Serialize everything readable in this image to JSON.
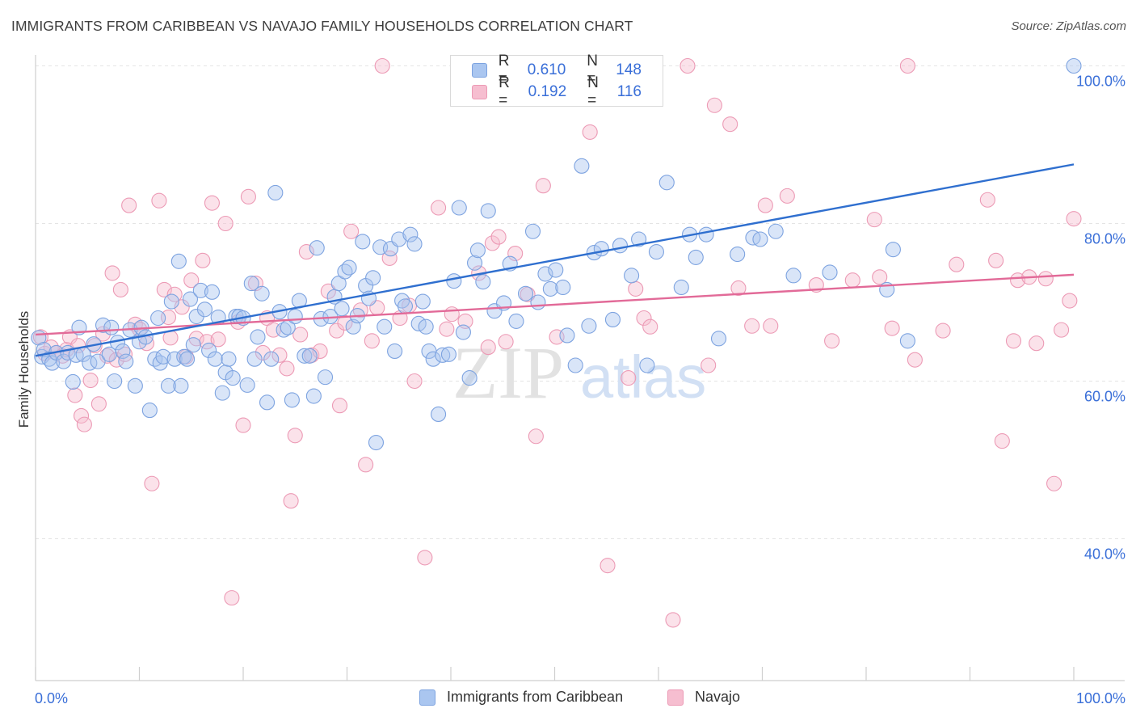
{
  "header": {
    "title": "IMMIGRANTS FROM CARIBBEAN VS NAVAJO FAMILY HOUSEHOLDS CORRELATION CHART",
    "source": "Source: ZipAtlas.com"
  },
  "watermark": {
    "zip": "ZIP",
    "atlas": "atlas"
  },
  "legend": {
    "rows": [
      {
        "r_label": "R =",
        "r_value": "0.610",
        "n_label": "N =",
        "n_value": "148",
        "color": "#8fb3ec"
      },
      {
        "r_label": "R =",
        "r_value": "0.192",
        "n_label": "N =",
        "n_value": "116",
        "color": "#f2a3bd"
      }
    ]
  },
  "bottom_legend": [
    {
      "label": "Immigrants from Caribbean",
      "color": "#8fb3ec"
    },
    {
      "label": "Navajo",
      "color": "#f2a3bd"
    }
  ],
  "chart_data": {
    "type": "scatter",
    "title": "IMMIGRANTS FROM CARIBBEAN VS NAVAJO FAMILY HOUSEHOLDS CORRELATION CHART",
    "xlabel": "",
    "ylabel": "Family Households",
    "xlim": [
      0,
      100
    ],
    "ylim": [
      22,
      102
    ],
    "x_tick_labels": [
      "0.0%",
      "100.0%"
    ],
    "y_ticks": [
      40,
      60,
      80,
      100
    ],
    "y_tick_labels": [
      "40.0%",
      "60.0%",
      "80.0%",
      "100.0%"
    ],
    "grid": true,
    "legend_placement": "top-center",
    "colors": {
      "blue_fill": "#aac6f0",
      "blue_stroke": "#7da3e0",
      "blue_line": "#2f6fcf",
      "pink_fill": "#f6bed0",
      "pink_stroke": "#ec9ab5",
      "pink_line": "#e26a98"
    },
    "series": [
      {
        "name": "Immigrants from Caribbean",
        "trend": {
          "x": [
            0,
            100
          ],
          "y": [
            63.2,
            87.5
          ]
        },
        "points": [
          [
            0.3,
            65.5
          ],
          [
            0.6,
            63.1
          ],
          [
            0.8,
            64.0
          ],
          [
            1.3,
            62.8
          ],
          [
            1.6,
            62.3
          ],
          [
            2.0,
            63.6
          ],
          [
            2.7,
            62.5
          ],
          [
            3.1,
            63.6
          ],
          [
            3.6,
            59.9
          ],
          [
            3.9,
            63.3
          ],
          [
            4.2,
            66.8
          ],
          [
            4.6,
            63.4
          ],
          [
            5.2,
            62.3
          ],
          [
            5.6,
            64.7
          ],
          [
            6.0,
            62.5
          ],
          [
            6.5,
            67.1
          ],
          [
            7.1,
            63.4
          ],
          [
            7.3,
            66.8
          ],
          [
            7.6,
            60.0
          ],
          [
            7.9,
            64.9
          ],
          [
            8.4,
            63.8
          ],
          [
            8.7,
            62.5
          ],
          [
            9.1,
            66.5
          ],
          [
            9.6,
            59.4
          ],
          [
            10.0,
            65.0
          ],
          [
            10.2,
            66.8
          ],
          [
            10.6,
            65.6
          ],
          [
            11.0,
            56.3
          ],
          [
            11.5,
            62.8
          ],
          [
            11.8,
            68.0
          ],
          [
            12.0,
            62.3
          ],
          [
            12.3,
            63.1
          ],
          [
            12.8,
            59.4
          ],
          [
            13.1,
            70.1
          ],
          [
            13.4,
            62.8
          ],
          [
            13.8,
            75.2
          ],
          [
            14.0,
            59.4
          ],
          [
            14.3,
            63.1
          ],
          [
            14.6,
            62.8
          ],
          [
            14.9,
            70.4
          ],
          [
            15.2,
            64.6
          ],
          [
            15.5,
            68.2
          ],
          [
            15.9,
            71.5
          ],
          [
            16.3,
            69.1
          ],
          [
            16.7,
            63.9
          ],
          [
            17.0,
            71.3
          ],
          [
            17.3,
            62.8
          ],
          [
            17.6,
            68.1
          ],
          [
            18.0,
            58.5
          ],
          [
            18.3,
            61.1
          ],
          [
            18.6,
            62.8
          ],
          [
            19.0,
            60.4
          ],
          [
            19.3,
            68.2
          ],
          [
            19.6,
            68.2
          ],
          [
            20.0,
            68.0
          ],
          [
            20.4,
            59.5
          ],
          [
            20.8,
            72.4
          ],
          [
            21.1,
            62.8
          ],
          [
            21.4,
            65.6
          ],
          [
            21.8,
            71.1
          ],
          [
            22.3,
            57.3
          ],
          [
            22.7,
            62.8
          ],
          [
            23.1,
            83.9
          ],
          [
            23.5,
            68.8
          ],
          [
            23.9,
            66.5
          ],
          [
            24.3,
            66.8
          ],
          [
            24.7,
            57.6
          ],
          [
            25.0,
            68.2
          ],
          [
            25.4,
            70.2
          ],
          [
            25.9,
            63.2
          ],
          [
            26.4,
            63.2
          ],
          [
            26.8,
            58.1
          ],
          [
            27.1,
            76.9
          ],
          [
            27.5,
            67.9
          ],
          [
            27.9,
            60.5
          ],
          [
            28.4,
            68.2
          ],
          [
            28.8,
            70.7
          ],
          [
            29.2,
            72.4
          ],
          [
            29.5,
            69.2
          ],
          [
            29.8,
            73.9
          ],
          [
            30.2,
            74.4
          ],
          [
            30.6,
            66.9
          ],
          [
            31.0,
            68.3
          ],
          [
            31.5,
            77.7
          ],
          [
            31.8,
            72.1
          ],
          [
            32.1,
            70.5
          ],
          [
            32.5,
            73.1
          ],
          [
            32.8,
            52.2
          ],
          [
            33.2,
            77.0
          ],
          [
            33.6,
            66.9
          ],
          [
            34.2,
            76.8
          ],
          [
            34.6,
            63.8
          ],
          [
            35.0,
            78.0
          ],
          [
            35.3,
            70.2
          ],
          [
            35.6,
            69.5
          ],
          [
            36.1,
            78.6
          ],
          [
            36.5,
            77.4
          ],
          [
            36.9,
            67.3
          ],
          [
            37.3,
            70.1
          ],
          [
            37.6,
            66.9
          ],
          [
            37.9,
            63.8
          ],
          [
            38.3,
            62.8
          ],
          [
            38.8,
            55.8
          ],
          [
            39.2,
            63.3
          ],
          [
            39.8,
            63.4
          ],
          [
            40.3,
            72.7
          ],
          [
            40.8,
            82.0
          ],
          [
            41.2,
            66.2
          ],
          [
            41.8,
            60.4
          ],
          [
            42.3,
            75.0
          ],
          [
            42.6,
            76.6
          ],
          [
            43.1,
            72.6
          ],
          [
            43.6,
            81.6
          ],
          [
            44.2,
            68.9
          ],
          [
            45.1,
            69.9
          ],
          [
            45.7,
            74.9
          ],
          [
            46.3,
            67.6
          ],
          [
            47.2,
            71.1
          ],
          [
            47.9,
            79.0
          ],
          [
            48.4,
            70.0
          ],
          [
            49.1,
            73.6
          ],
          [
            49.6,
            71.7
          ],
          [
            50.1,
            74.1
          ],
          [
            50.8,
            71.9
          ],
          [
            51.2,
            65.8
          ],
          [
            52.0,
            62.0
          ],
          [
            52.6,
            87.3
          ],
          [
            53.3,
            67.0
          ],
          [
            53.8,
            76.3
          ],
          [
            54.5,
            76.8
          ],
          [
            55.6,
            67.8
          ],
          [
            56.3,
            77.2
          ],
          [
            57.4,
            73.4
          ],
          [
            58.1,
            78.0
          ],
          [
            58.9,
            62.0
          ],
          [
            59.8,
            76.4
          ],
          [
            60.8,
            85.2
          ],
          [
            62.2,
            71.9
          ],
          [
            63.0,
            78.6
          ],
          [
            63.6,
            75.7
          ],
          [
            64.6,
            78.6
          ],
          [
            65.8,
            65.4
          ],
          [
            67.6,
            76.1
          ],
          [
            69.1,
            78.2
          ],
          [
            69.8,
            78.0
          ],
          [
            71.3,
            79.0
          ],
          [
            73.0,
            73.4
          ],
          [
            76.5,
            73.8
          ],
          [
            82.0,
            71.6
          ],
          [
            82.6,
            76.7
          ],
          [
            84.0,
            65.1
          ],
          [
            100.0,
            100.0
          ]
        ]
      },
      {
        "name": "Navajo",
        "trend": {
          "x": [
            0,
            100
          ],
          "y": [
            65.9,
            73.5
          ]
        },
        "points": [
          [
            0.5,
            65.6
          ],
          [
            0.9,
            63.5
          ],
          [
            1.5,
            64.3
          ],
          [
            2.0,
            63.6
          ],
          [
            2.6,
            63.2
          ],
          [
            3.0,
            64.0
          ],
          [
            3.3,
            65.6
          ],
          [
            3.8,
            58.2
          ],
          [
            4.1,
            64.5
          ],
          [
            4.4,
            55.6
          ],
          [
            4.7,
            54.5
          ],
          [
            5.3,
            60.1
          ],
          [
            5.7,
            64.5
          ],
          [
            6.1,
            57.1
          ],
          [
            6.5,
            66.0
          ],
          [
            6.9,
            63.2
          ],
          [
            7.4,
            73.7
          ],
          [
            7.8,
            62.7
          ],
          [
            8.2,
            71.6
          ],
          [
            8.6,
            63.4
          ],
          [
            9.0,
            82.3
          ],
          [
            9.6,
            67.2
          ],
          [
            10.0,
            66.6
          ],
          [
            10.7,
            64.8
          ],
          [
            11.2,
            47.0
          ],
          [
            11.9,
            82.9
          ],
          [
            12.4,
            71.6
          ],
          [
            12.8,
            68.1
          ],
          [
            13.0,
            65.5
          ],
          [
            13.4,
            71.0
          ],
          [
            14.1,
            69.4
          ],
          [
            14.5,
            63.1
          ],
          [
            15.0,
            72.8
          ],
          [
            15.5,
            65.4
          ],
          [
            16.1,
            75.3
          ],
          [
            16.5,
            65.0
          ],
          [
            17.0,
            82.6
          ],
          [
            17.6,
            65.3
          ],
          [
            18.3,
            80.0
          ],
          [
            18.9,
            32.5
          ],
          [
            19.5,
            67.5
          ],
          [
            20.0,
            54.4
          ],
          [
            20.5,
            83.4
          ],
          [
            21.2,
            72.4
          ],
          [
            21.9,
            63.6
          ],
          [
            22.3,
            68.0
          ],
          [
            22.9,
            66.5
          ],
          [
            23.5,
            63.3
          ],
          [
            24.2,
            61.6
          ],
          [
            24.6,
            44.8
          ],
          [
            25.0,
            53.1
          ],
          [
            25.5,
            65.9
          ],
          [
            26.1,
            76.4
          ],
          [
            26.6,
            63.3
          ],
          [
            27.4,
            63.8
          ],
          [
            28.2,
            71.4
          ],
          [
            29.0,
            66.4
          ],
          [
            29.3,
            56.9
          ],
          [
            29.8,
            67.4
          ],
          [
            30.4,
            79.0
          ],
          [
            31.3,
            69.0
          ],
          [
            31.8,
            49.4
          ],
          [
            32.4,
            65.1
          ],
          [
            32.9,
            69.3
          ],
          [
            33.4,
            100.0
          ],
          [
            34.1,
            75.6
          ],
          [
            35.1,
            68.0
          ],
          [
            36.0,
            69.6
          ],
          [
            36.5,
            60.0
          ],
          [
            37.5,
            37.6
          ],
          [
            38.8,
            82.0
          ],
          [
            39.6,
            66.6
          ],
          [
            40.1,
            68.5
          ],
          [
            41.4,
            67.6
          ],
          [
            42.7,
            73.7
          ],
          [
            43.6,
            64.3
          ],
          [
            44.0,
            77.5
          ],
          [
            44.6,
            78.3
          ],
          [
            45.3,
            65.0
          ],
          [
            46.2,
            76.2
          ],
          [
            47.4,
            71.0
          ],
          [
            48.2,
            53.0
          ],
          [
            48.9,
            84.8
          ],
          [
            50.2,
            65.6
          ],
          [
            52.5,
            98.2
          ],
          [
            53.4,
            91.6
          ],
          [
            55.1,
            36.6
          ],
          [
            57.1,
            60.4
          ],
          [
            57.8,
            71.7
          ],
          [
            58.6,
            68.0
          ],
          [
            59.2,
            66.9
          ],
          [
            61.4,
            29.7
          ],
          [
            62.8,
            100.0
          ],
          [
            64.8,
            62.0
          ],
          [
            65.4,
            95.0
          ],
          [
            66.9,
            92.6
          ],
          [
            67.7,
            71.8
          ],
          [
            69.0,
            67.0
          ],
          [
            70.3,
            82.3
          ],
          [
            70.8,
            67.0
          ],
          [
            72.4,
            83.5
          ],
          [
            75.2,
            72.2
          ],
          [
            76.7,
            65.1
          ],
          [
            78.7,
            72.8
          ],
          [
            80.8,
            80.5
          ],
          [
            81.3,
            73.2
          ],
          [
            82.5,
            66.7
          ],
          [
            84.0,
            100.0
          ],
          [
            84.7,
            62.7
          ],
          [
            87.4,
            66.4
          ],
          [
            88.7,
            74.8
          ],
          [
            91.7,
            83.0
          ],
          [
            92.5,
            75.3
          ],
          [
            93.1,
            52.4
          ],
          [
            94.2,
            65.1
          ],
          [
            94.6,
            72.8
          ],
          [
            95.7,
            73.2
          ],
          [
            96.4,
            64.8
          ],
          [
            97.3,
            73.0
          ],
          [
            98.1,
            47.0
          ],
          [
            98.8,
            66.5
          ],
          [
            99.6,
            70.2
          ],
          [
            100.0,
            80.6
          ]
        ]
      }
    ]
  }
}
